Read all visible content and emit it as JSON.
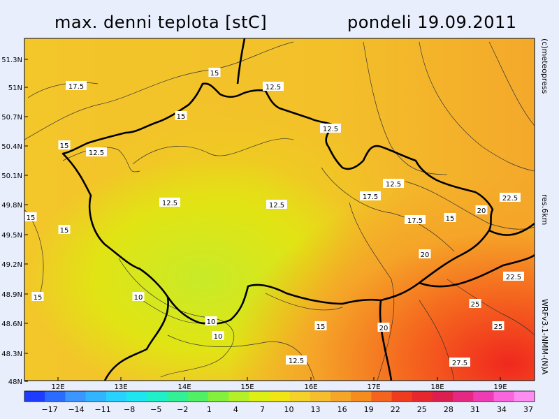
{
  "header": {
    "title": "max. denni teplota [stC]",
    "date": "pondeli 19.09.2011"
  },
  "side_labels": {
    "credit": "(c)meteopress",
    "resolution": "res.6km",
    "model": "WRFv3.1-NMM-(N)A"
  },
  "map": {
    "lat_labels": [
      "51.3N",
      "51N",
      "50.7N",
      "50.4N",
      "50.1N",
      "49.8N",
      "49.5N",
      "49.2N",
      "48.9N",
      "48.6N",
      "48.3N",
      "48N"
    ],
    "lon_labels": [
      "12E",
      "13E",
      "14E",
      "15E",
      "16E",
      "17E",
      "18E",
      "19E"
    ],
    "isotherm_labels": [
      "15",
      "17.5",
      "12.5",
      "15",
      "12.5",
      "15",
      "12.5",
      "12.5",
      "12.5",
      "12.5",
      "17.5",
      "15",
      "15",
      "17.5",
      "15",
      "20",
      "22.5",
      "20",
      "22.5",
      "15",
      "10",
      "10",
      "10",
      "15",
      "20",
      "25",
      "25",
      "12.5",
      "27.5"
    ]
  },
  "colorbar": {
    "tick_labels": [
      "-17",
      "-14",
      "-11",
      "-8",
      "-5",
      "-2",
      "1",
      "4",
      "7",
      "10",
      "13",
      "16",
      "19",
      "22",
      "25",
      "28",
      "31",
      "34",
      "37"
    ],
    "colors": [
      "#1e3cff",
      "#2a6cff",
      "#3c96ff",
      "#32b4ff",
      "#28d2ff",
      "#1ee6f0",
      "#1ef0c8",
      "#32f096",
      "#50f064",
      "#82f03c",
      "#b4f028",
      "#dcf014",
      "#f0e614",
      "#f5d228",
      "#f5be2d",
      "#f5a528",
      "#f58c1e",
      "#f5641e",
      "#f03c1e",
      "#e6282d",
      "#dc1e50",
      "#e62882",
      "#f03cb4",
      "#fa64dc",
      "#ff8cf0"
    ]
  }
}
